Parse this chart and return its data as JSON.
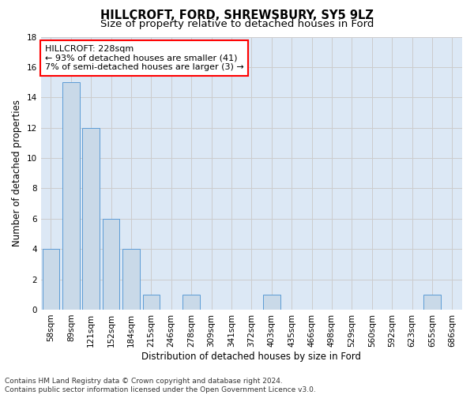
{
  "title": "HILLCROFT, FORD, SHREWSBURY, SY5 9LZ",
  "subtitle": "Size of property relative to detached houses in Ford",
  "xlabel": "Distribution of detached houses by size in Ford",
  "ylabel": "Number of detached properties",
  "categories": [
    "58sqm",
    "89sqm",
    "121sqm",
    "152sqm",
    "184sqm",
    "215sqm",
    "246sqm",
    "278sqm",
    "309sqm",
    "341sqm",
    "372sqm",
    "403sqm",
    "435sqm",
    "466sqm",
    "498sqm",
    "529sqm",
    "560sqm",
    "592sqm",
    "623sqm",
    "655sqm",
    "686sqm"
  ],
  "values": [
    4,
    15,
    12,
    6,
    4,
    1,
    0,
    1,
    0,
    0,
    0,
    1,
    0,
    0,
    0,
    0,
    0,
    0,
    0,
    1,
    0
  ],
  "bar_color": "#c9d9e8",
  "bar_edge_color": "#5b9bd5",
  "annotation_text": "HILLCROFT: 228sqm\n← 93% of detached houses are smaller (41)\n7% of semi-detached houses are larger (3) →",
  "annotation_box_color": "white",
  "annotation_box_edge_color": "red",
  "ylim": [
    0,
    18
  ],
  "yticks": [
    0,
    2,
    4,
    6,
    8,
    10,
    12,
    14,
    16,
    18
  ],
  "grid_color": "#cccccc",
  "bg_color": "#dce8f5",
  "footer": "Contains HM Land Registry data © Crown copyright and database right 2024.\nContains public sector information licensed under the Open Government Licence v3.0.",
  "title_fontsize": 10.5,
  "subtitle_fontsize": 9.5,
  "xlabel_fontsize": 8.5,
  "ylabel_fontsize": 8.5,
  "tick_fontsize": 7.5,
  "footer_fontsize": 6.5,
  "annotation_fontsize": 8.0
}
